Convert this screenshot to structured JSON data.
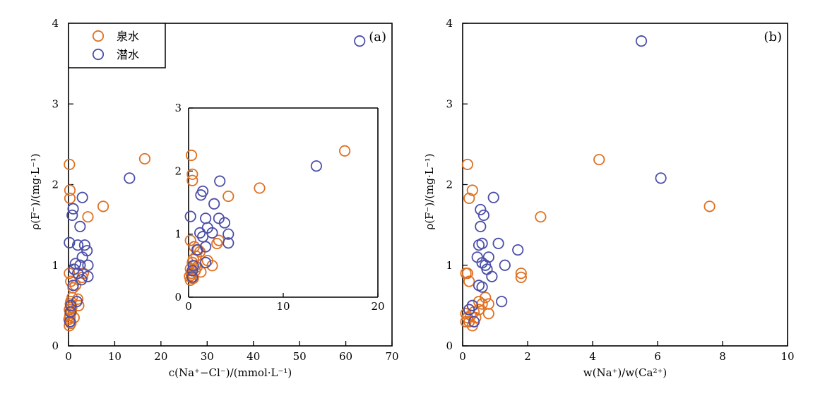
{
  "colors": {
    "spring": "#E07020",
    "phreatic": "#4A4EA8"
  },
  "legend": {
    "spring": "泉水",
    "phreatic": "潜水"
  },
  "chart_data": [
    {
      "id": "a",
      "type": "scatter",
      "panel_label": "(a)",
      "xlabel": "c(Na⁺−Cl⁻)/(mmol·L⁻¹)",
      "ylabel": "ρ(F⁻)/(mg·L⁻¹)",
      "xlim": [
        0,
        70
      ],
      "ylim": [
        0,
        4
      ],
      "xticks": [
        0,
        10,
        20,
        30,
        40,
        50,
        60,
        70
      ],
      "yticks": [
        0,
        1,
        2,
        3,
        4
      ],
      "legend_position": "top-left",
      "series": [
        {
          "name": "泉水",
          "points": [
            [
              0.2,
              2.25
            ],
            [
              0.3,
              1.93
            ],
            [
              0.3,
              1.83
            ],
            [
              16.5,
              2.32
            ],
            [
              7.5,
              1.73
            ],
            [
              4.2,
              1.6
            ],
            [
              0.2,
              0.9
            ],
            [
              0.5,
              0.8
            ],
            [
              1.5,
              0.75
            ],
            [
              2.0,
              0.58
            ],
            [
              2.2,
              0.5
            ],
            [
              3.0,
              0.85
            ],
            [
              3.2,
              0.9
            ],
            [
              0.5,
              0.55
            ],
            [
              0.8,
              0.6
            ],
            [
              1.0,
              0.72
            ],
            [
              0.2,
              0.45
            ],
            [
              0.3,
              0.38
            ],
            [
              0.4,
              0.3
            ],
            [
              0.2,
              0.25
            ],
            [
              0.5,
              0.28
            ],
            [
              0.3,
              0.35
            ],
            [
              0.6,
              0.42
            ],
            [
              1.2,
              0.35
            ],
            [
              0.4,
              0.52
            ],
            [
              0.1,
              0.33
            ],
            [
              0.7,
              0.48
            ]
          ]
        },
        {
          "name": "潜水",
          "points": [
            [
              63.0,
              3.78
            ],
            [
              13.2,
              2.08
            ],
            [
              3.0,
              1.84
            ],
            [
              1.0,
              1.7
            ],
            [
              0.8,
              1.62
            ],
            [
              2.5,
              1.48
            ],
            [
              0.2,
              1.28
            ],
            [
              3.5,
              1.25
            ],
            [
              2.0,
              1.25
            ],
            [
              4.0,
              1.18
            ],
            [
              3.0,
              1.1
            ],
            [
              2.5,
              1.0
            ],
            [
              1.5,
              1.02
            ],
            [
              1.2,
              0.95
            ],
            [
              4.2,
              1.0
            ],
            [
              4.2,
              0.86
            ],
            [
              2.8,
              0.82
            ],
            [
              0.5,
              0.5
            ],
            [
              0.4,
              0.42
            ],
            [
              1.8,
              0.55
            ],
            [
              0.3,
              0.3
            ],
            [
              1.0,
              0.75
            ],
            [
              2.0,
              0.9
            ]
          ]
        }
      ]
    },
    {
      "id": "a-inset",
      "type": "scatter",
      "xlim": [
        0,
        20
      ],
      "ylim": [
        0,
        3
      ],
      "xticks": [
        0,
        10,
        20
      ],
      "yticks": [
        0,
        1,
        2,
        3
      ],
      "series": [
        {
          "name": "泉水",
          "points": [
            [
              0.3,
              2.25
            ],
            [
              0.4,
              1.95
            ],
            [
              0.4,
              1.85
            ],
            [
              16.5,
              2.32
            ],
            [
              7.5,
              1.73
            ],
            [
              4.2,
              1.6
            ],
            [
              0.2,
              0.9
            ],
            [
              0.6,
              0.8
            ],
            [
              1.0,
              0.75
            ],
            [
              2.0,
              0.58
            ],
            [
              2.5,
              0.5
            ],
            [
              3.0,
              0.85
            ],
            [
              3.2,
              0.9
            ],
            [
              0.5,
              0.6
            ],
            [
              0.8,
              0.65
            ],
            [
              1.2,
              0.72
            ],
            [
              0.2,
              0.45
            ],
            [
              0.3,
              0.38
            ],
            [
              0.4,
              0.3
            ],
            [
              0.2,
              0.27
            ],
            [
              0.5,
              0.3
            ],
            [
              0.3,
              0.35
            ],
            [
              0.7,
              0.42
            ],
            [
              1.3,
              0.4
            ],
            [
              0.4,
              0.55
            ],
            [
              0.1,
              0.33
            ],
            [
              0.7,
              0.5
            ],
            [
              0.9,
              0.48
            ]
          ]
        },
        {
          "name": "潜水",
          "points": [
            [
              13.5,
              2.08
            ],
            [
              3.3,
              1.84
            ],
            [
              1.5,
              1.68
            ],
            [
              1.3,
              1.62
            ],
            [
              2.7,
              1.48
            ],
            [
              0.2,
              1.28
            ],
            [
              3.8,
              1.18
            ],
            [
              1.8,
              1.25
            ],
            [
              3.2,
              1.25
            ],
            [
              2.5,
              1.02
            ],
            [
              1.2,
              1.02
            ],
            [
              1.5,
              0.96
            ],
            [
              4.2,
              1.0
            ],
            [
              4.2,
              0.86
            ],
            [
              1.8,
              0.8
            ],
            [
              0.5,
              0.5
            ],
            [
              0.4,
              0.42
            ],
            [
              1.8,
              0.55
            ],
            [
              0.4,
              0.32
            ],
            [
              0.9,
              0.75
            ],
            [
              2.0,
              1.1
            ]
          ]
        }
      ]
    },
    {
      "id": "b",
      "type": "scatter",
      "panel_label": "(b)",
      "xlabel": "w(Na⁺)/w(Ca²⁺)",
      "ylabel": "ρ(F⁻)/(mg·L⁻¹)",
      "xlim": [
        0,
        10
      ],
      "ylim": [
        0,
        4
      ],
      "xticks": [
        0,
        2,
        4,
        6,
        8,
        10
      ],
      "yticks": [
        0,
        1,
        2,
        3,
        4
      ],
      "series": [
        {
          "name": "泉水",
          "points": [
            [
              0.15,
              2.25
            ],
            [
              0.3,
              1.93
            ],
            [
              0.2,
              1.83
            ],
            [
              4.2,
              2.31
            ],
            [
              7.6,
              1.73
            ],
            [
              2.4,
              1.6
            ],
            [
              0.1,
              0.9
            ],
            [
              0.15,
              0.9
            ],
            [
              1.8,
              0.9
            ],
            [
              1.8,
              0.85
            ],
            [
              0.2,
              0.8
            ],
            [
              0.7,
              0.6
            ],
            [
              0.8,
              0.52
            ],
            [
              0.8,
              0.4
            ],
            [
              0.5,
              0.55
            ],
            [
              0.3,
              0.5
            ],
            [
              0.2,
              0.45
            ],
            [
              0.1,
              0.3
            ],
            [
              0.2,
              0.3
            ],
            [
              0.3,
              0.25
            ],
            [
              0.1,
              0.4
            ],
            [
              0.4,
              0.35
            ],
            [
              0.6,
              0.52
            ],
            [
              0.5,
              0.45
            ],
            [
              0.25,
              0.38
            ],
            [
              0.35,
              0.42
            ],
            [
              0.15,
              0.35
            ]
          ]
        },
        {
          "name": "潜水",
          "points": [
            [
              5.5,
              3.78
            ],
            [
              6.1,
              2.08
            ],
            [
              0.95,
              1.84
            ],
            [
              0.55,
              1.69
            ],
            [
              0.65,
              1.62
            ],
            [
              0.55,
              1.48
            ],
            [
              0.6,
              1.27
            ],
            [
              1.1,
              1.27
            ],
            [
              0.5,
              1.25
            ],
            [
              1.7,
              1.19
            ],
            [
              0.45,
              1.1
            ],
            [
              0.8,
              1.1
            ],
            [
              0.6,
              1.03
            ],
            [
              0.7,
              1.0
            ],
            [
              0.75,
              0.95
            ],
            [
              1.3,
              1.0
            ],
            [
              0.9,
              0.86
            ],
            [
              0.5,
              0.75
            ],
            [
              0.6,
              0.73
            ],
            [
              1.2,
              0.55
            ],
            [
              0.3,
              0.5
            ],
            [
              0.35,
              0.3
            ],
            [
              0.2,
              0.45
            ]
          ]
        }
      ]
    }
  ]
}
